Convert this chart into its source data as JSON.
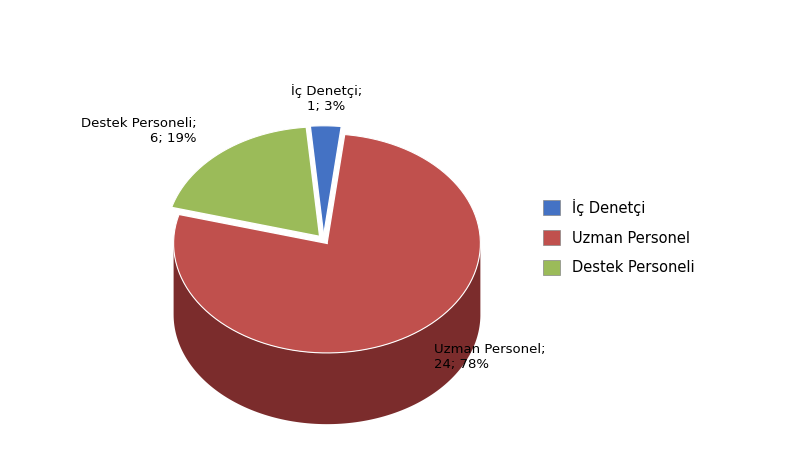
{
  "labels": [
    "İç Denetçi",
    "Uzman Personel",
    "Destek Personeli"
  ],
  "values": [
    1,
    24,
    6
  ],
  "percentages": [
    3,
    78,
    19
  ],
  "counts": [
    1,
    24,
    6
  ],
  "colors": [
    "#4472C4",
    "#C0504D",
    "#9BBB59"
  ],
  "shadow_colors": [
    "#17375E",
    "#7B2C2C",
    "#4F6228"
  ],
  "startangle": 95,
  "legend_labels": [
    "İç Denetçi",
    "Uzman Personel",
    "Destek Personeli"
  ],
  "figsize": [
    8.06,
    4.74
  ],
  "dpi": 100
}
